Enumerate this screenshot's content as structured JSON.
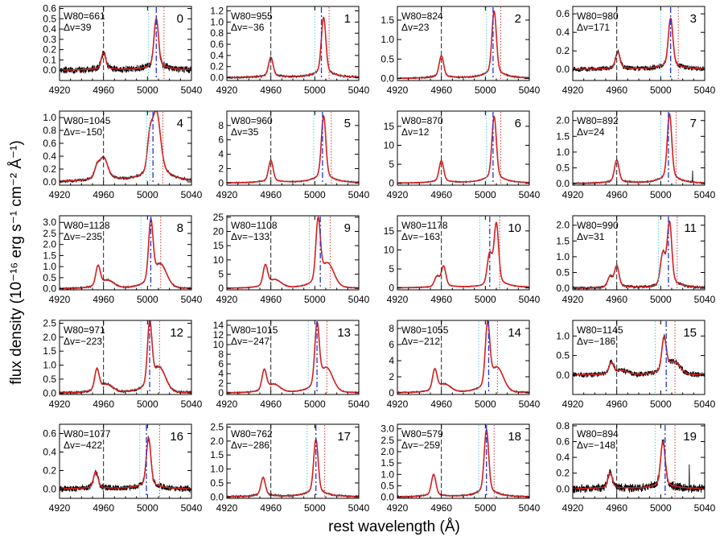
{
  "chart_data": {
    "type": "line",
    "layout": "grid of 20 panels, 5 rows x 4 columns",
    "xlabel": "rest wavelength (Å)",
    "ylabel": "flux density (10⁻¹⁶ erg s⁻¹ cm⁻² Å⁻¹)",
    "xlim": [
      4920,
      5040
    ],
    "x_ticks": [
      4920,
      4960,
      5000,
      5040
    ],
    "series_names": [
      "observed spectrum",
      "model fit"
    ],
    "colors": {
      "data": "#000000",
      "fit": "#d42020",
      "blue_line": "#2233dd",
      "cyan_line": "#55d0e0",
      "red_line": "#e04040",
      "hbeta_line": "#222222"
    },
    "reference_line_wavelength": 4960,
    "panels": [
      {
        "id": "0",
        "w80_label": "W80=661",
        "dv_label": "Δv=39",
        "w80": 661,
        "dv": 39,
        "ylim": [
          -0.1,
          0.62
        ],
        "yticks": [
          0.0,
          0.1,
          0.2,
          0.3,
          0.4,
          0.5,
          0.6
        ],
        "ytick_labels": [
          "0.0",
          "0.1",
          "0.2",
          "0.3",
          "0.4",
          "0.5",
          "0.6"
        ],
        "peak": 0.5,
        "line_center": 5008,
        "blue_shoulder": false,
        "red_shoulder": false,
        "cyan_lines": [
          5001
        ],
        "blue_line": 5008,
        "red_line": 5015,
        "noise": 0.025
      },
      {
        "id": "1",
        "w80_label": "W80=955",
        "dv_label": "Δv=−36",
        "w80": 955,
        "dv": -36,
        "ylim": [
          -0.05,
          1.28
        ],
        "yticks": [
          0.0,
          0.2,
          0.4,
          0.6,
          0.8,
          1.0,
          1.2
        ],
        "ytick_labels": [
          "0.0",
          "0.2",
          "0.4",
          "0.6",
          "0.8",
          "1.0",
          "1.2"
        ],
        "peak": 1.08,
        "line_center": 5008,
        "blue_shoulder": false,
        "red_shoulder": false,
        "cyan_lines": [
          5000
        ],
        "blue_line": 5006,
        "red_line": 5013,
        "noise": 0.012
      },
      {
        "id": "2",
        "w80_label": "W80=824",
        "dv_label": "Δv=23",
        "w80": 824,
        "dv": 23,
        "ylim": [
          -0.05,
          1.85
        ],
        "yticks": [
          0.0,
          0.5,
          1.0,
          1.5
        ],
        "ytick_labels": [
          "0.0",
          "0.5",
          "1.0",
          "1.5"
        ],
        "peak": 1.72,
        "line_center": 5008,
        "blue_shoulder": false,
        "red_shoulder": false,
        "cyan_lines": [
          5001
        ],
        "blue_line": 5007,
        "red_line": 5014,
        "noise": 0.012
      },
      {
        "id": "3",
        "w80_label": "W80=980",
        "dv_label": "Δv=171",
        "w80": 980,
        "dv": 171,
        "ylim": [
          -0.12,
          0.68
        ],
        "yticks": [
          0.0,
          0.2,
          0.4,
          0.6
        ],
        "ytick_labels": [
          "0.0",
          "0.2",
          "0.4",
          "0.6"
        ],
        "peak": 0.55,
        "line_center": 5009,
        "blue_shoulder": false,
        "red_shoulder": false,
        "cyan_lines": [
          5000
        ],
        "blue_line": 5009,
        "red_line": 5016,
        "noise": 0.02
      },
      {
        "id": "4",
        "w80_label": "W80=1045",
        "dv_label": "Δv=−150",
        "w80": 1045,
        "dv": -150,
        "ylim": [
          -0.05,
          1.1
        ],
        "yticks": [
          0.0,
          0.2,
          0.4,
          0.6,
          0.8,
          1.0
        ],
        "ytick_labels": [
          "0.0",
          "0.2",
          "0.4",
          "0.6",
          "0.8",
          "1.0"
        ],
        "peak": 0.95,
        "line_center": 5008,
        "blue_shoulder": true,
        "red_shoulder": false,
        "broad": true,
        "cyan_lines": [
          4999,
          5002
        ],
        "blue_line": 5005,
        "red_line": 5014,
        "noise": 0.015
      },
      {
        "id": "5",
        "w80_label": "W80=960",
        "dv_label": "Δv=35",
        "w80": 960,
        "dv": 35,
        "ylim": [
          -0.3,
          10.0
        ],
        "yticks": [
          0,
          2,
          4,
          6,
          8
        ],
        "ytick_labels": [
          "0",
          "2",
          "4",
          "6",
          "8"
        ],
        "peak": 9.3,
        "line_center": 5008,
        "blue_shoulder": false,
        "red_shoulder": false,
        "cyan_lines": [
          4999
        ],
        "blue_line": 5007,
        "red_line": 5015,
        "noise": 0.05
      },
      {
        "id": "6",
        "w80_label": "W80=870",
        "dv_label": "Δv=12",
        "w80": 870,
        "dv": 12,
        "ylim": [
          -0.5,
          19.0
        ],
        "yticks": [
          0,
          5,
          10,
          15
        ],
        "ytick_labels": [
          "0",
          "5",
          "10",
          "15"
        ],
        "peak": 17.5,
        "line_center": 5008,
        "blue_shoulder": false,
        "red_shoulder": false,
        "cyan_lines": [
          5001
        ],
        "blue_line": 5007,
        "red_line": 5014,
        "noise": 0.08
      },
      {
        "id": "7",
        "w80_label": "W80=892",
        "dv_label": "Δv=24",
        "w80": 892,
        "dv": 24,
        "ylim": [
          -0.05,
          2.3
        ],
        "yticks": [
          0.0,
          0.5,
          1.0,
          1.5,
          2.0
        ],
        "ytick_labels": [
          "0.0",
          "0.5",
          "1.0",
          "1.5",
          "2.0"
        ],
        "peak": 2.2,
        "line_center": 5008,
        "blue_shoulder": false,
        "red_shoulder": false,
        "cyan_lines": [
          5000
        ],
        "blue_line": 5007,
        "red_line": 5014,
        "noise": 0.015
      },
      {
        "id": "8",
        "w80_label": "W80=1128",
        "dv_label": "Δv=−235",
        "w80": 1128,
        "dv": -235,
        "ylim": [
          -0.05,
          3.3
        ],
        "yticks": [
          0.0,
          0.5,
          1.0,
          1.5,
          2.0,
          2.5,
          3.0
        ],
        "ytick_labels": [
          "0.0",
          "0.5",
          "1.0",
          "1.5",
          "2.0",
          "2.5",
          "3.0"
        ],
        "peak": 2.9,
        "line_center": 5003,
        "blue_shoulder": false,
        "red_shoulder": true,
        "cyan_lines": [
          4994
        ],
        "blue_line": 5003,
        "red_line": 5012,
        "noise": 0.02
      },
      {
        "id": "9",
        "w80_label": "W80=1108",
        "dv_label": "Δv=−133",
        "w80": 1108,
        "dv": -133,
        "ylim": [
          -0.5,
          25.5
        ],
        "yticks": [
          0,
          5,
          10,
          15,
          20,
          25
        ],
        "ytick_labels": [
          "0",
          "5",
          "10",
          "15",
          "20",
          "25"
        ],
        "peak": 23.0,
        "line_center": 5003,
        "blue_shoulder": false,
        "red_shoulder": true,
        "cyan_lines": [
          4995
        ],
        "blue_line": 5005,
        "red_line": 5014,
        "noise": 0.1
      },
      {
        "id": "10",
        "w80_label": "W80=1178",
        "dv_label": "Δv=−163",
        "w80": 1178,
        "dv": -163,
        "ylim": [
          -0.5,
          19.0
        ],
        "yticks": [
          0,
          5,
          10,
          15
        ],
        "ytick_labels": [
          "0",
          "5",
          "10",
          "15"
        ],
        "peak": 17.0,
        "line_center": 5010,
        "blue_shoulder": true,
        "red_shoulder": false,
        "cyan_lines": [
          4995
        ],
        "blue_line": 5004,
        "red_line": 5013,
        "noise": 0.08
      },
      {
        "id": "11",
        "w80_label": "W80=990",
        "dv_label": "Δv=31",
        "w80": 990,
        "dv": 31,
        "ylim": [
          -0.05,
          2.3
        ],
        "yticks": [
          0.0,
          0.5,
          1.0,
          1.5,
          2.0
        ],
        "ytick_labels": [
          "0.0",
          "0.5",
          "1.0",
          "1.5",
          "2.0"
        ],
        "peak": 2.1,
        "line_center": 5008,
        "blue_shoulder": true,
        "red_shoulder": false,
        "cyan_lines": [
          4998
        ],
        "blue_line": 5007,
        "red_line": 5015,
        "noise": 0.03
      },
      {
        "id": "12",
        "w80_label": "W80=971",
        "dv_label": "Δv=−223",
        "w80": 971,
        "dv": -223,
        "ylim": [
          -0.05,
          2.6
        ],
        "yticks": [
          0.0,
          0.5,
          1.0,
          1.5,
          2.0,
          2.5
        ],
        "ytick_labels": [
          "0.0",
          "0.5",
          "1.0",
          "1.5",
          "2.0",
          "2.5"
        ],
        "peak": 2.4,
        "line_center": 5002,
        "blue_shoulder": false,
        "red_shoulder": true,
        "cyan_lines": [
          4994
        ],
        "blue_line": 5002,
        "red_line": 5011,
        "noise": 0.03
      },
      {
        "id": "13",
        "w80_label": "W80=1015",
        "dv_label": "Δv=−247",
        "w80": 1015,
        "dv": -247,
        "ylim": [
          -0.3,
          15.0
        ],
        "yticks": [
          0,
          2,
          4,
          6,
          8,
          10,
          12,
          14
        ],
        "ytick_labels": [
          "0",
          "2",
          "4",
          "6",
          "8",
          "10",
          "12",
          "14"
        ],
        "peak": 13.5,
        "line_center": 5002,
        "blue_shoulder": false,
        "red_shoulder": true,
        "cyan_lines": [
          4994
        ],
        "blue_line": 5002,
        "red_line": 5011,
        "noise": 0.07
      },
      {
        "id": "14",
        "w80_label": "W80=1055",
        "dv_label": "Δv=−212",
        "w80": 1055,
        "dv": -212,
        "ylim": [
          -0.2,
          9.0
        ],
        "yticks": [
          0,
          2,
          4,
          6,
          8
        ],
        "ytick_labels": [
          "0",
          "2",
          "4",
          "6",
          "8"
        ],
        "peak": 8.2,
        "line_center": 5002,
        "blue_shoulder": false,
        "red_shoulder": true,
        "cyan_lines": [
          4994
        ],
        "blue_line": 5003,
        "red_line": 5011,
        "noise": 0.05
      },
      {
        "id": "15",
        "w80_label": "W80=1145",
        "dv_label": "Δv=−186",
        "w80": 1145,
        "dv": -186,
        "ylim": [
          -0.5,
          1.4
        ],
        "yticks": [
          0.0,
          0.5,
          1.0
        ],
        "ytick_labels": [
          "0.0",
          "0.5",
          "1.0"
        ],
        "peak": 0.9,
        "line_center": 5003,
        "blue_shoulder": false,
        "red_shoulder": true,
        "cyan_lines": [
          4995
        ],
        "blue_line": 5005,
        "red_line": 5013,
        "noise": 0.05
      },
      {
        "id": "16",
        "w80_label": "W80=1077",
        "dv_label": "Δv=−422",
        "w80": 1077,
        "dv": -422,
        "ylim": [
          -0.1,
          0.7
        ],
        "yticks": [
          0.0,
          0.2,
          0.4,
          0.6
        ],
        "ytick_labels": [
          "0.0",
          "0.2",
          "0.4",
          "0.6"
        ],
        "peak": 0.55,
        "line_center": 5001,
        "blue_shoulder": false,
        "red_shoulder": false,
        "cyan_lines": [
          4993
        ],
        "blue_line": 4999,
        "red_line": 5011,
        "noise": 0.025
      },
      {
        "id": "17",
        "w80_label": "W80=762",
        "dv_label": "Δv=−286",
        "w80": 762,
        "dv": -286,
        "ylim": [
          -0.05,
          2.6
        ],
        "yticks": [
          0.0,
          0.5,
          1.0,
          1.5,
          2.0,
          2.5
        ],
        "ytick_labels": [
          "0.0",
          "0.5",
          "1.0",
          "1.5",
          "2.0",
          "2.5"
        ],
        "peak": 2.05,
        "line_center": 5001,
        "blue_shoulder": false,
        "red_shoulder": false,
        "cyan_lines": [
          4993
        ],
        "blue_line": 5001,
        "red_line": 5009,
        "noise": 0.02
      },
      {
        "id": "18",
        "w80_label": "W80=579",
        "dv_label": "Δv=−259",
        "w80": 579,
        "dv": -259,
        "ylim": [
          -0.05,
          3.2
        ],
        "yticks": [
          0.0,
          0.5,
          1.0,
          1.5,
          2.0,
          2.5,
          3.0
        ],
        "ytick_labels": [
          "0.0",
          "0.5",
          "1.0",
          "1.5",
          "2.0",
          "2.5",
          "3.0"
        ],
        "peak": 2.95,
        "line_center": 5001,
        "blue_shoulder": false,
        "red_shoulder": false,
        "cyan_lines": [
          4994
        ],
        "blue_line": 5001,
        "red_line": 5008,
        "noise": 0.02
      },
      {
        "id": "19",
        "w80_label": "W80=894",
        "dv_label": "Δv=−148",
        "w80": 894,
        "dv": -148,
        "ylim": [
          -0.12,
          0.82
        ],
        "yticks": [
          0.0,
          0.2,
          0.4,
          0.6,
          0.8
        ],
        "ytick_labels": [
          "0.0",
          "0.2",
          "0.4",
          "0.6",
          "0.8"
        ],
        "peak": 0.6,
        "line_center": 5002,
        "blue_shoulder": false,
        "red_shoulder": false,
        "cyan_lines": [
          4995
        ],
        "blue_line": 5004,
        "red_line": 5013,
        "noise": 0.04
      }
    ]
  }
}
